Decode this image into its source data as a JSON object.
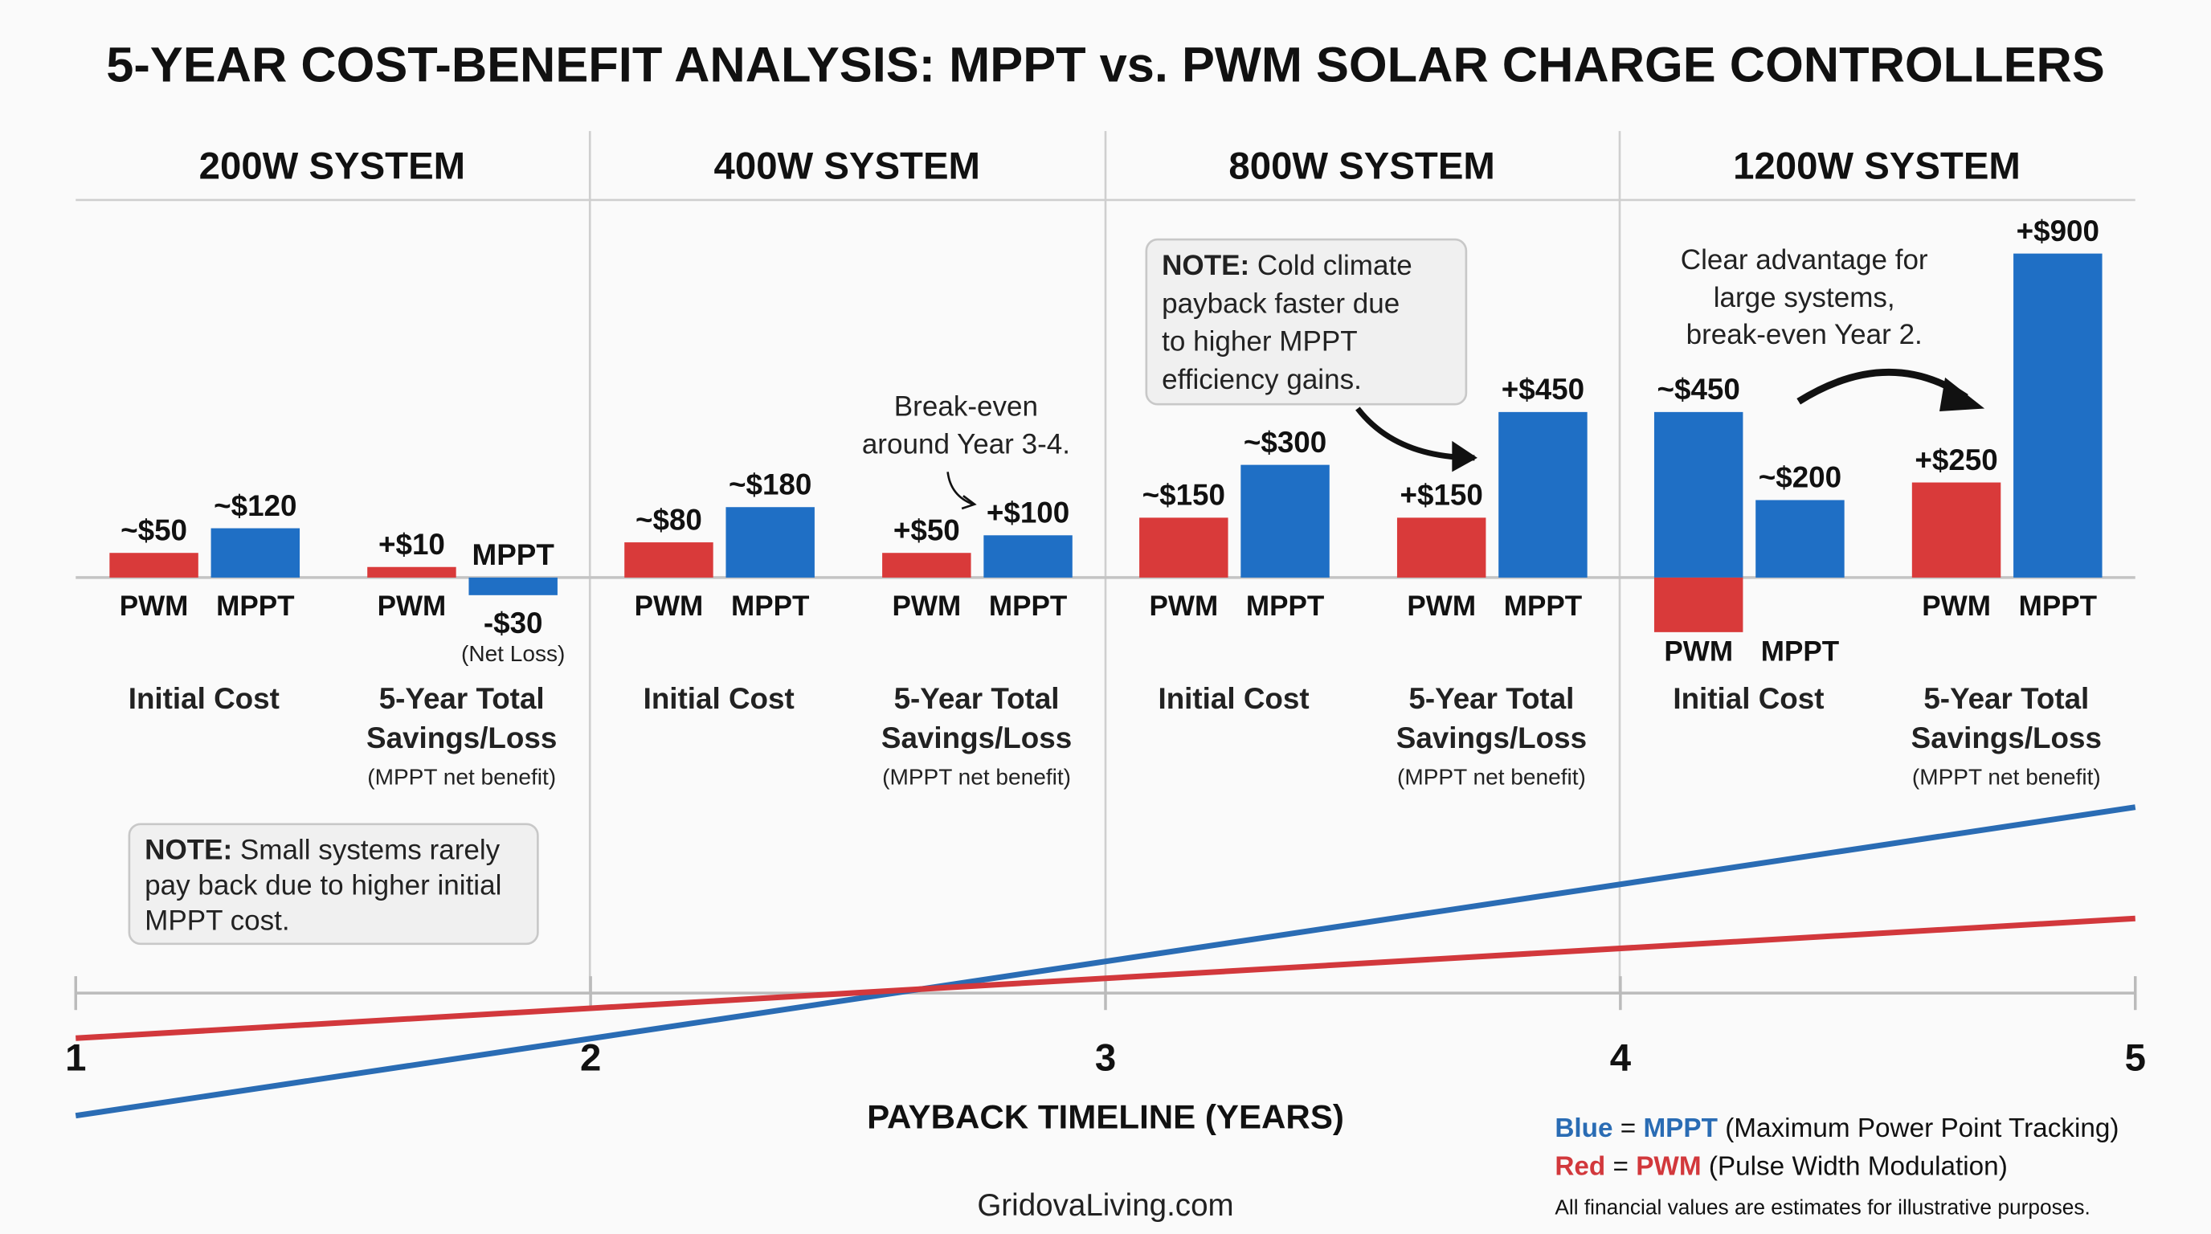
{
  "title": "5-YEAR COST-BENEFIT ANALYSIS: MPPT vs. PWM SOLAR CHARGE CONTROLLERS",
  "colors": {
    "pwm": "#d93a3a",
    "mppt": "#1f6fc5",
    "pwm_line": "#d2383c",
    "mppt_line": "#2a6cb4"
  },
  "chart_data": {
    "type": "bar",
    "title": "5-YEAR COST-BENEFIT ANALYSIS: MPPT vs. PWM SOLAR CHARGE CONTROLLERS",
    "series_labels": {
      "pwm": "PWM",
      "mppt": "MPPT"
    },
    "systems": [
      {
        "name": "200W SYSTEM",
        "initial": {
          "label": "Initial Cost",
          "bars": [
            {
              "series": "pwm",
              "value": 50,
              "label": "~$50"
            },
            {
              "series": "mppt",
              "value": 120,
              "label": "~$120"
            }
          ]
        },
        "savings": {
          "label1": "5-Year Total",
          "label2": "Savings/Loss",
          "sub": "(MPPT net benefit)",
          "bars": [
            {
              "series": "pwm",
              "value": 10,
              "label": "+$10"
            },
            {
              "series": "mppt",
              "value": -30,
              "label": "-$30",
              "note": "(Net Loss)"
            }
          ]
        }
      },
      {
        "name": "400W SYSTEM",
        "initial": {
          "label": "Initial Cost",
          "bars": [
            {
              "series": "pwm",
              "value": 80,
              "label": "~$80"
            },
            {
              "series": "mppt",
              "value": 180,
              "label": "~$180"
            }
          ]
        },
        "savings": {
          "label1": "5-Year Total",
          "label2": "Savings/Loss",
          "sub": "(MPPT net benefit)",
          "bars": [
            {
              "series": "pwm",
              "value": 50,
              "label": "+$50"
            },
            {
              "series": "mppt",
              "value": 100,
              "label": "+$100"
            }
          ]
        }
      },
      {
        "name": "800W SYSTEM",
        "initial": {
          "label": "Initial Cost",
          "bars": [
            {
              "series": "pwm",
              "value": 150,
              "label": "~$150"
            },
            {
              "series": "mppt",
              "value": 300,
              "label": "~$300"
            }
          ]
        },
        "savings": {
          "label1": "5-Year Total",
          "label2": "Savings/Loss",
          "sub": "(MPPT net benefit)",
          "bars": [
            {
              "series": "pwm",
              "value": 150,
              "label": "+$150"
            },
            {
              "series": "mppt",
              "value": 450,
              "label": "+$450"
            }
          ]
        }
      },
      {
        "name": "1200W SYSTEM",
        "initial": {
          "label": "Initial Cost",
          "bars": [
            {
              "series": "mppt",
              "value": 450,
              "label": "~$450",
              "under": {
                "series": "pwm",
                "value": -135
              }
            },
            {
              "series": "mppt",
              "value": 200,
              "label": "~$200"
            }
          ]
        },
        "savings": {
          "label1": "5-Year Total",
          "label2": "Savings/Loss",
          "sub": "(MPPT net benefit)",
          "bars": [
            {
              "series": "pwm",
              "value": 250,
              "label": "+$250"
            },
            {
              "series": "mppt",
              "value": 900,
              "label": "+$900"
            }
          ]
        }
      }
    ],
    "timeline": {
      "type": "line",
      "xlabel": "PAYBACK TIMELINE (YEARS)",
      "x_ticks": [
        "1",
        "2",
        "3",
        "4",
        "5"
      ],
      "xlim": [
        1,
        5
      ],
      "series": [
        {
          "name": "MPPT",
          "x": [
            1,
            5
          ],
          "y": [
            -8.7,
            13.2
          ]
        },
        {
          "name": "PWM",
          "x": [
            1,
            5
          ],
          "y": [
            -3.2,
            5.3
          ]
        }
      ]
    }
  },
  "notes": {
    "small": {
      "bold": "NOTE:",
      "l1": " Small systems rarely",
      "l2": "pay back due to higher initial",
      "l3": "MPPT cost."
    },
    "cold": {
      "bold": "NOTE:",
      "l1": " Cold climate",
      "l2": "payback faster due",
      "l3": "to higher MPPT",
      "l4": "efficiency gains."
    },
    "breakeven": {
      "l1": "Break-even",
      "l2": "around Year 3-4."
    },
    "large": {
      "l1": "Clear advantage for",
      "l2": "large systems,",
      "l3": "break-even Year 2."
    }
  },
  "legend": {
    "blue_word": "Blue",
    "eq": " = ",
    "mppt": "MPPT",
    "mppt_desc": " (Maximum Power Point Tracking)",
    "red_word": "Red",
    "pwm": "PWM",
    "pwm_desc": " (Pulse Width Modulation)",
    "disclaimer": "All financial values are estimates for illustrative purposes."
  },
  "site": "GridovaLiving.com"
}
